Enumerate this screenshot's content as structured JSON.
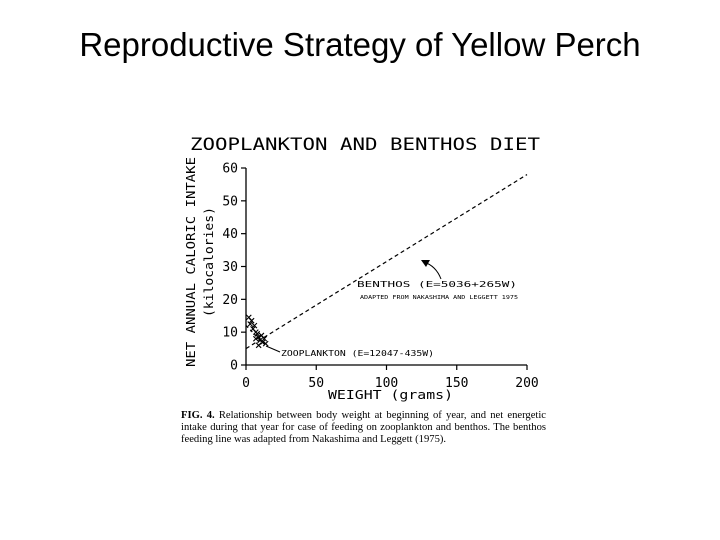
{
  "slide": {
    "title": "Reproductive Strategy of Yellow Perch"
  },
  "chart_data": {
    "type": "line",
    "title": "ZOOPLANKTON AND BENTHOS DIET",
    "xlabel": "WEIGHT (grams)",
    "ylabel_line1": "NET ANNUAL CALORIC INTAKE",
    "ylabel_line2": "(kilocalories)",
    "xlim": [
      0,
      200
    ],
    "ylim": [
      0,
      60
    ],
    "xticks": [
      0,
      50,
      100,
      150,
      200
    ],
    "yticks": [
      0,
      10,
      20,
      30,
      40,
      50,
      60
    ],
    "grid": false,
    "series": [
      {
        "name": "BENTHOS (E=5036+265W)",
        "x": [
          0,
          200
        ],
        "y": [
          5.0,
          58.0
        ]
      },
      {
        "name": "ZOOPLANKTON (E=12047-435W)",
        "x": [
          0,
          15
        ],
        "y": [
          12.0,
          5.5
        ]
      }
    ],
    "scatter_points": [
      {
        "x": 2,
        "y": 14.5
      },
      {
        "x": 3,
        "y": 12.5
      },
      {
        "x": 4,
        "y": 13.5
      },
      {
        "x": 5,
        "y": 11.0
      },
      {
        "x": 6,
        "y": 12.0
      },
      {
        "x": 7,
        "y": 10.0
      },
      {
        "x": 8,
        "y": 9.5
      },
      {
        "x": 9,
        "y": 8.5
      },
      {
        "x": 10,
        "y": 7.5
      },
      {
        "x": 11,
        "y": 9.0
      },
      {
        "x": 12,
        "y": 7.0
      },
      {
        "x": 13,
        "y": 8.0
      },
      {
        "x": 14,
        "y": 6.5
      },
      {
        "x": 7,
        "y": 8.0
      },
      {
        "x": 9,
        "y": 6.0
      }
    ],
    "annotations": {
      "benthos_label": "BENTHOS (E=5036+265W)",
      "benthos_source": "ADAPTED FROM NAKASHIMA AND LEGGETT 1975",
      "zooplankton_label": "ZOOPLANKTON (E=12047-435W)"
    }
  },
  "caption": {
    "label": "FIG. 4.",
    "text": "Relationship between body weight at beginning of year, and net energetic intake during that year for case of feeding on zooplankton and benthos. The benthos feeding line was adapted from Nakashima and Leggett (1975)."
  }
}
